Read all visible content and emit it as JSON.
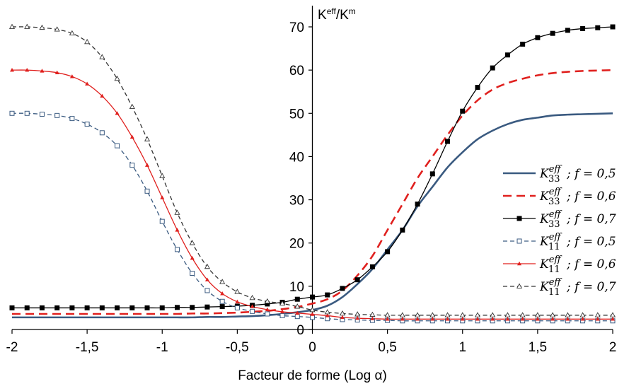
{
  "chart_data": {
    "type": "line",
    "title": "",
    "xlabel": "Facteur de forme (Log α)",
    "ylabel": "K",
    "ylabel_sup1": "eff",
    "ylabel_sep": "/K",
    "ylabel_sup2": "m",
    "xlim": [
      -2,
      2
    ],
    "ylim": [
      0,
      75
    ],
    "xticks": [
      -2,
      -1.5,
      -1,
      -0.5,
      0,
      0.5,
      1,
      1.5,
      2
    ],
    "xtick_labels": [
      "-2",
      "-1,5",
      "-1",
      "-0,5",
      "0",
      "0,5",
      "1",
      "1,5",
      "2"
    ],
    "yticks": [
      0,
      10,
      20,
      30,
      40,
      50,
      60,
      70
    ],
    "ytick_labels": [
      "0",
      "10",
      "20",
      "30",
      "40",
      "50",
      "60",
      "70"
    ],
    "legend_position": "right",
    "series": [
      {
        "name": "K33eff ; f = 0,5",
        "legend": {
          "base": "K",
          "sub": "33",
          "sup": "eff",
          "rest": "; f = 0,5"
        },
        "color": "#3a5a80",
        "style": "solid-thick",
        "marker": "none",
        "x": [
          -2.0,
          -1.9,
          -1.8,
          -1.7,
          -1.6,
          -1.5,
          -1.4,
          -1.3,
          -1.2,
          -1.1,
          -1.0,
          -0.9,
          -0.8,
          -0.7,
          -0.6,
          -0.5,
          -0.4,
          -0.3,
          -0.2,
          -0.1,
          0.0,
          0.1,
          0.2,
          0.3,
          0.4,
          0.5,
          0.6,
          0.7,
          0.8,
          0.9,
          1.0,
          1.1,
          1.2,
          1.3,
          1.4,
          1.5,
          1.6,
          1.7,
          1.8,
          1.9,
          2.0
        ],
        "y": [
          2.8,
          2.8,
          2.8,
          2.8,
          2.8,
          2.8,
          2.8,
          2.8,
          2.8,
          2.8,
          2.8,
          2.8,
          2.8,
          2.9,
          2.9,
          3.0,
          3.1,
          3.3,
          3.6,
          4.0,
          4.5,
          5.5,
          7.5,
          10.5,
          14.0,
          18.5,
          23.0,
          28.5,
          33.0,
          37.5,
          41.0,
          44.0,
          46.0,
          47.5,
          48.5,
          49.0,
          49.5,
          49.7,
          49.8,
          49.9,
          50.0
        ]
      },
      {
        "name": "K33eff ; f = 0,6",
        "legend": {
          "base": "K",
          "sub": "33",
          "sup": "eff",
          "rest": "; f = 0,6"
        },
        "color": "#e0201e",
        "style": "dashed-thick",
        "marker": "none",
        "x": [
          -2.0,
          -1.9,
          -1.8,
          -1.7,
          -1.6,
          -1.5,
          -1.4,
          -1.3,
          -1.2,
          -1.1,
          -1.0,
          -0.9,
          -0.8,
          -0.7,
          -0.6,
          -0.5,
          -0.4,
          -0.3,
          -0.2,
          -0.1,
          0.0,
          0.1,
          0.2,
          0.3,
          0.4,
          0.5,
          0.6,
          0.7,
          0.8,
          0.9,
          1.0,
          1.1,
          1.2,
          1.3,
          1.4,
          1.5,
          1.6,
          1.7,
          1.8,
          1.9,
          2.0
        ],
        "y": [
          3.6,
          3.6,
          3.6,
          3.6,
          3.6,
          3.6,
          3.6,
          3.6,
          3.6,
          3.6,
          3.6,
          3.6,
          3.7,
          3.7,
          3.8,
          3.9,
          4.1,
          4.3,
          4.7,
          5.2,
          6.0,
          7.0,
          9.0,
          12.5,
          17.0,
          23.0,
          29.0,
          35.0,
          40.0,
          45.0,
          49.5,
          53.0,
          55.5,
          57.0,
          58.0,
          58.8,
          59.3,
          59.6,
          59.8,
          59.9,
          60.0
        ]
      },
      {
        "name": "K33eff ; f = 0,7",
        "legend": {
          "base": "K",
          "sub": "33",
          "sup": "eff",
          "rest": "; f = 0,7"
        },
        "color": "#000000",
        "style": "solid",
        "marker": "square-filled",
        "x": [
          -2.0,
          -1.9,
          -1.8,
          -1.7,
          -1.6,
          -1.5,
          -1.4,
          -1.3,
          -1.2,
          -1.1,
          -1.0,
          -0.9,
          -0.8,
          -0.7,
          -0.6,
          -0.5,
          -0.4,
          -0.3,
          -0.2,
          -0.1,
          0.0,
          0.1,
          0.2,
          0.3,
          0.4,
          0.5,
          0.6,
          0.7,
          0.8,
          0.9,
          1.0,
          1.1,
          1.2,
          1.3,
          1.4,
          1.5,
          1.6,
          1.7,
          1.8,
          1.9,
          2.0
        ],
        "y": [
          5.0,
          5.0,
          5.0,
          5.0,
          5.0,
          5.0,
          5.0,
          5.0,
          5.0,
          5.0,
          5.0,
          5.1,
          5.1,
          5.2,
          5.3,
          5.4,
          5.6,
          5.9,
          6.3,
          7.0,
          7.5,
          8.0,
          9.5,
          11.5,
          14.5,
          18.0,
          23.0,
          29.0,
          36.0,
          43.5,
          50.5,
          56.0,
          60.5,
          63.5,
          66.0,
          67.5,
          68.5,
          69.2,
          69.6,
          69.8,
          70.0
        ]
      },
      {
        "name": "K11eff ; f = 0,5",
        "legend": {
          "base": "K",
          "sub": "11",
          "sup": "eff",
          "rest": "; f = 0,5"
        },
        "color": "#3a5a80",
        "style": "dashed",
        "marker": "square-open",
        "x": [
          -2.0,
          -1.9,
          -1.8,
          -1.7,
          -1.6,
          -1.5,
          -1.4,
          -1.3,
          -1.2,
          -1.1,
          -1.0,
          -0.9,
          -0.8,
          -0.7,
          -0.6,
          -0.5,
          -0.4,
          -0.3,
          -0.2,
          -0.1,
          0.0,
          0.1,
          0.2,
          0.3,
          0.4,
          0.5,
          0.6,
          0.7,
          0.8,
          0.9,
          1.0,
          1.1,
          1.2,
          1.3,
          1.4,
          1.5,
          1.6,
          1.7,
          1.8,
          1.9,
          2.0
        ],
        "y": [
          50.0,
          50.0,
          49.8,
          49.5,
          48.8,
          47.5,
          45.5,
          42.5,
          38.0,
          32.0,
          25.0,
          18.5,
          13.0,
          9.0,
          6.5,
          5.0,
          4.2,
          3.6,
          3.2,
          3.0,
          2.8,
          2.5,
          2.3,
          2.2,
          2.1,
          2.1,
          2.0,
          2.0,
          2.0,
          2.0,
          2.0,
          2.0,
          2.0,
          2.0,
          2.0,
          2.0,
          2.0,
          2.0,
          2.0,
          2.0,
          2.0
        ]
      },
      {
        "name": "K11eff ; f = 0,6",
        "legend": {
          "base": "K",
          "sub": "11",
          "sup": "eff",
          "rest": "; f = 0,6"
        },
        "color": "#e0201e",
        "style": "solid",
        "marker": "triangle-filled",
        "x": [
          -2.0,
          -1.9,
          -1.8,
          -1.7,
          -1.6,
          -1.5,
          -1.4,
          -1.3,
          -1.2,
          -1.1,
          -1.0,
          -0.9,
          -0.8,
          -0.7,
          -0.6,
          -0.5,
          -0.4,
          -0.3,
          -0.2,
          -0.1,
          0.0,
          0.1,
          0.2,
          0.3,
          0.4,
          0.5,
          0.6,
          0.7,
          0.8,
          0.9,
          1.0,
          1.1,
          1.2,
          1.3,
          1.4,
          1.5,
          1.6,
          1.7,
          1.8,
          1.9,
          2.0
        ],
        "y": [
          60.0,
          60.0,
          59.8,
          59.4,
          58.5,
          56.8,
          54.0,
          50.0,
          44.5,
          38.0,
          30.5,
          23.0,
          16.5,
          11.5,
          8.3,
          6.4,
          5.3,
          4.6,
          4.1,
          3.8,
          3.5,
          3.2,
          2.8,
          2.6,
          2.5,
          2.4,
          2.4,
          2.4,
          2.4,
          2.4,
          2.4,
          2.4,
          2.4,
          2.4,
          2.4,
          2.4,
          2.4,
          2.4,
          2.4,
          2.4,
          2.4
        ]
      },
      {
        "name": "K11eff ; f = 0,7",
        "legend": {
          "base": "K",
          "sub": "11",
          "sup": "eff",
          "rest": "; f = 0,7"
        },
        "color": "#333333",
        "style": "dashed",
        "marker": "triangle-open",
        "x": [
          -2.0,
          -1.9,
          -1.8,
          -1.7,
          -1.6,
          -1.5,
          -1.4,
          -1.3,
          -1.2,
          -1.1,
          -1.0,
          -0.9,
          -0.8,
          -0.7,
          -0.6,
          -0.5,
          -0.4,
          -0.3,
          -0.2,
          -0.1,
          0.0,
          0.1,
          0.2,
          0.3,
          0.4,
          0.5,
          0.6,
          0.7,
          0.8,
          0.9,
          1.0,
          1.1,
          1.2,
          1.3,
          1.4,
          1.5,
          1.6,
          1.7,
          1.8,
          1.9,
          2.0
        ],
        "y": [
          70.0,
          70.0,
          69.8,
          69.4,
          68.5,
          66.5,
          63.0,
          58.0,
          51.5,
          44.0,
          35.5,
          27.0,
          20.0,
          14.5,
          11.0,
          8.7,
          7.3,
          6.5,
          6.0,
          5.3,
          4.5,
          4.0,
          3.7,
          3.5,
          3.4,
          3.3,
          3.3,
          3.3,
          3.3,
          3.3,
          3.3,
          3.3,
          3.3,
          3.3,
          3.3,
          3.3,
          3.3,
          3.3,
          3.3,
          3.3,
          3.3
        ]
      }
    ]
  }
}
